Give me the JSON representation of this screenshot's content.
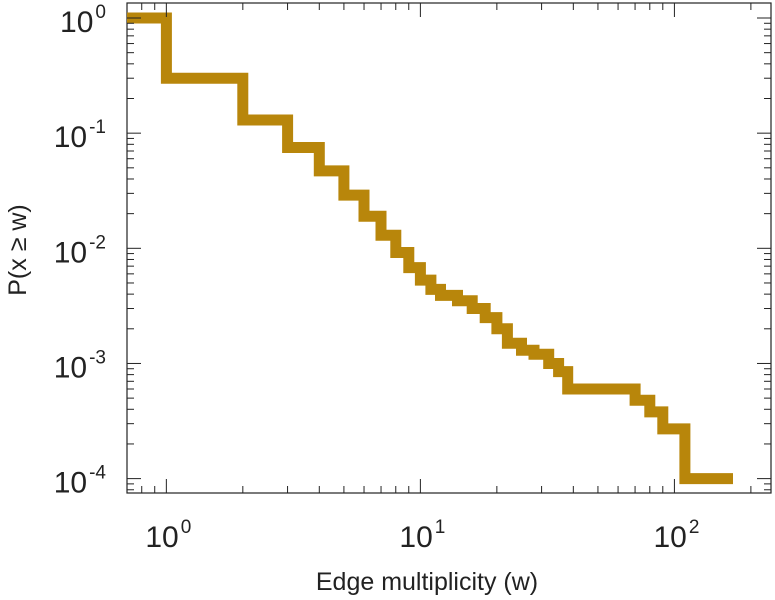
{
  "chart_data": {
    "type": "line",
    "step": true,
    "xlabel": "Edge multiplicity (w)",
    "ylabel": "P(x ≥ w)",
    "xscale": "log",
    "yscale": "log",
    "xlim": [
      0.7,
      240
    ],
    "ylim": [
      7.5e-05,
      1.35
    ],
    "grid": false,
    "color": "#b8860b",
    "x_ticks": [
      {
        "base": "10",
        "exp": "0",
        "value": 1
      },
      {
        "base": "10",
        "exp": "1",
        "value": 10
      },
      {
        "base": "10",
        "exp": "2",
        "value": 100
      }
    ],
    "y_ticks": [
      {
        "base": "10",
        "exp": "0",
        "value": 1
      },
      {
        "base": "10",
        "exp": "-1",
        "value": 0.1
      },
      {
        "base": "10",
        "exp": "-2",
        "value": 0.01
      },
      {
        "base": "10",
        "exp": "-3",
        "value": 0.001
      },
      {
        "base": "10",
        "exp": "-4",
        "value": 0.0001
      }
    ],
    "series": [
      {
        "x": [
          0.7,
          1,
          2,
          3,
          4,
          5,
          6,
          7,
          8,
          9,
          10,
          11,
          12,
          14,
          16,
          18,
          20,
          22,
          25,
          28,
          32,
          35,
          38,
          70,
          80,
          90,
          110,
          170
        ],
        "y": [
          1.0,
          0.3,
          0.13,
          0.075,
          0.047,
          0.029,
          0.019,
          0.013,
          0.0092,
          0.0068,
          0.0053,
          0.0044,
          0.0039,
          0.0035,
          0.003,
          0.0025,
          0.002,
          0.0015,
          0.0013,
          0.0012,
          0.001,
          0.00085,
          0.0006,
          0.00048,
          0.00038,
          0.00027,
          0.0001,
          0.0001
        ]
      }
    ]
  }
}
